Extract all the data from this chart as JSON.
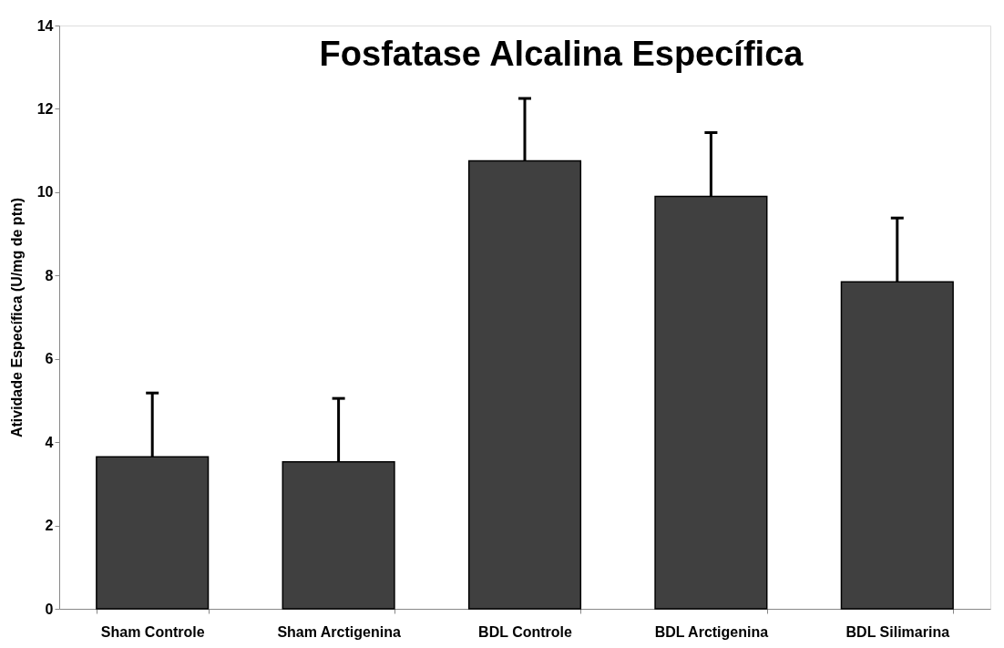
{
  "chart_data": {
    "type": "bar",
    "title": "Fosfatase Alcalina Específica",
    "ylabel": "Atividade Específica (U/mg de ptn)",
    "categories": [
      "Sham Controle",
      "Sham Arctigenina",
      "BDL Controle",
      "BDL Arctigenina",
      "BDL Silimarina"
    ],
    "values": [
      3.65,
      3.53,
      10.75,
      9.9,
      7.85
    ],
    "errors": [
      [
        3.65,
        5.18
      ],
      [
        3.53,
        5.05
      ],
      [
        10.75,
        12.25
      ],
      [
        9.9,
        11.43
      ],
      [
        7.85,
        9.38
      ]
    ],
    "color": "#404040",
    "ylim": [
      0,
      14
    ],
    "yticks": [
      0,
      2,
      4,
      6,
      8,
      10,
      12,
      14
    ],
    "grid": false
  }
}
